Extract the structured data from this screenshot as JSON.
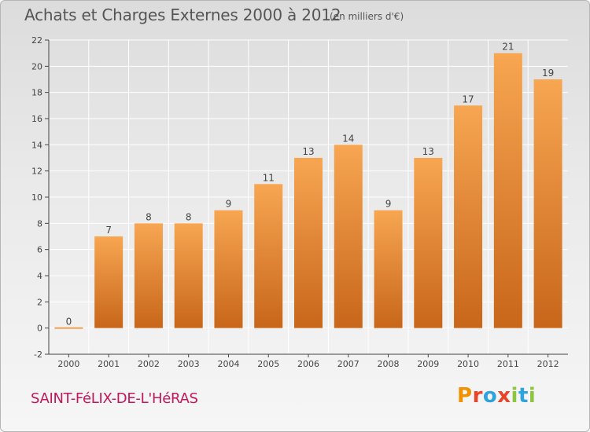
{
  "header": {
    "title": "Achats et Charges Externes 2000 à 2012",
    "unit": "(en milliers d'€)"
  },
  "footer": {
    "commune": "SAINT-FéLIX-DE-L'HéRAS",
    "brand": "Proxiti"
  },
  "colors": {
    "bar_top": "#f7a652",
    "bar_bottom": "#c8661a",
    "zero_bar": "#f0a050",
    "label": "#444444",
    "grid": "#ffffff",
    "axis": "#444444",
    "commune": "#c2185b",
    "logo_letters": [
      "#f39200",
      "#e8442a",
      "#2ea3dc",
      "#e8442a",
      "#8cc63f",
      "#2ea3dc",
      "#8cc63f"
    ]
  },
  "chart_data": {
    "type": "bar",
    "categories": [
      "2000",
      "2001",
      "2002",
      "2003",
      "2004",
      "2005",
      "2006",
      "2007",
      "2008",
      "2009",
      "2010",
      "2011",
      "2012"
    ],
    "values": [
      0,
      7,
      8,
      8,
      9,
      11,
      13,
      14,
      9,
      13,
      17,
      21,
      19
    ],
    "data_labels": [
      "0",
      "7",
      "8",
      "8",
      "9",
      "11",
      "13",
      "14",
      "9",
      "13",
      "17",
      "21",
      "19"
    ],
    "y_ticks": [
      -2,
      0,
      2,
      4,
      6,
      8,
      10,
      12,
      14,
      16,
      18,
      20,
      22
    ],
    "ylim": [
      -2,
      22
    ],
    "grid": true,
    "legend": "none"
  }
}
